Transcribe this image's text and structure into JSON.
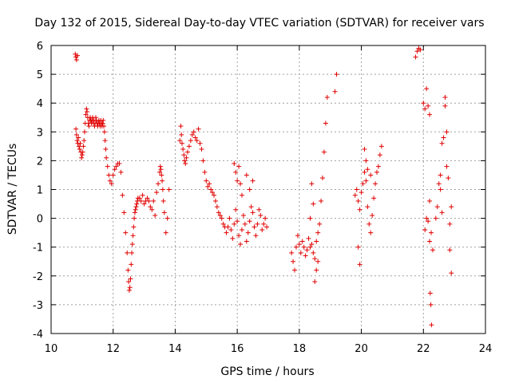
{
  "chart_data": {
    "type": "scatter",
    "title": "Day 132 of 2015, Sidereal Day-to-day VTEC variation (SDTVAR) for receiver vars",
    "xlabel": "GPS time / hours",
    "ylabel": "SDTVAR / TECUs",
    "xlim": [
      10,
      24
    ],
    "ylim": [
      -4,
      6
    ],
    "x_ticks": [
      "10",
      "12",
      "14",
      "16",
      "18",
      "20",
      "22",
      "24"
    ],
    "y_ticks": [
      "-4",
      "-3",
      "-2",
      "-1",
      "0",
      "1",
      "2",
      "3",
      "4",
      "5",
      "6"
    ],
    "grid": true,
    "marker": "+",
    "color": "#e00000",
    "series": [
      {
        "name": "SDTVAR",
        "x": [
          10.78,
          10.8,
          10.82,
          10.85,
          10.8,
          10.82,
          10.84,
          10.86,
          10.88,
          10.9,
          10.92,
          10.94,
          10.96,
          10.98,
          11.0,
          11.02,
          11.04,
          11.06,
          11.08,
          11.1,
          11.12,
          11.14,
          11.16,
          11.18,
          11.2,
          11.22,
          11.24,
          11.26,
          11.28,
          11.3,
          11.32,
          11.34,
          11.36,
          11.38,
          11.4,
          11.42,
          11.44,
          11.46,
          11.48,
          11.5,
          11.52,
          11.54,
          11.56,
          11.58,
          11.6,
          11.62,
          11.64,
          11.66,
          11.68,
          11.7,
          11.72,
          11.74,
          11.76,
          11.78,
          11.82,
          11.86,
          11.9,
          11.95,
          12.0,
          12.05,
          12.1,
          12.15,
          12.2,
          12.25,
          12.3,
          12.35,
          12.4,
          12.45,
          12.48,
          12.5,
          12.52,
          12.54,
          12.56,
          12.58,
          12.6,
          12.62,
          12.64,
          12.66,
          12.68,
          12.7,
          12.72,
          12.74,
          12.76,
          12.78,
          12.8,
          12.85,
          12.9,
          12.95,
          13.0,
          13.05,
          13.1,
          13.15,
          13.2,
          13.25,
          13.3,
          13.35,
          13.4,
          13.45,
          13.5,
          13.52,
          13.54,
          13.56,
          13.58,
          13.6,
          13.62,
          13.65,
          13.7,
          13.75,
          13.8,
          14.15,
          14.18,
          14.2,
          14.22,
          14.25,
          14.28,
          14.3,
          14.33,
          14.36,
          14.4,
          14.45,
          14.5,
          14.55,
          14.6,
          14.65,
          14.7,
          14.75,
          14.8,
          14.85,
          14.9,
          14.95,
          15.0,
          15.05,
          15.1,
          15.15,
          15.2,
          15.25,
          15.3,
          15.35,
          15.4,
          15.45,
          15.5,
          15.55,
          15.6,
          15.65,
          15.7,
          15.75,
          15.8,
          15.85,
          15.9,
          15.95,
          16.0,
          16.05,
          16.1,
          16.15,
          16.2,
          16.25,
          16.3,
          16.35,
          16.4,
          16.45,
          16.5,
          16.55,
          16.6,
          16.65,
          16.7,
          16.75,
          16.8,
          16.85,
          16.9,
          16.95,
          15.9,
          15.95,
          16.0,
          16.05,
          16.1,
          16.15,
          16.3,
          16.4,
          16.5,
          17.75,
          17.8,
          17.85,
          17.9,
          17.95,
          18.0,
          18.05,
          18.1,
          18.15,
          18.2,
          18.25,
          18.3,
          18.35,
          18.4,
          18.45,
          18.5,
          18.55,
          18.6,
          18.65,
          18.7,
          18.75,
          18.8,
          18.85,
          18.9,
          18.5,
          18.55,
          18.6,
          18.45,
          18.4,
          18.35,
          19.15,
          19.2,
          19.8,
          19.85,
          19.9,
          19.95,
          20.0,
          20.05,
          20.1,
          20.15,
          20.2,
          20.25,
          20.3,
          20.35,
          20.4,
          20.45,
          20.5,
          20.55,
          20.6,
          20.65,
          20.1,
          20.15,
          20.2,
          20.3,
          19.9,
          19.95,
          21.75,
          21.8,
          21.85,
          21.9,
          22.0,
          22.05,
          22.1,
          22.15,
          22.2,
          22.05,
          22.1,
          22.15,
          22.2,
          22.25,
          22.3,
          22.22,
          22.24,
          22.26,
          22.2,
          22.4,
          22.45,
          22.5,
          22.55,
          22.6,
          22.65,
          22.7,
          22.75,
          22.8,
          22.85,
          22.9,
          22.55,
          22.6,
          22.7,
          22.75,
          22.85,
          22.9
        ],
        "y": [
          5.7,
          5.6,
          5.5,
          5.65,
          3.1,
          2.9,
          2.7,
          2.6,
          2.8,
          2.5,
          2.4,
          2.6,
          2.3,
          2.1,
          2.2,
          2.3,
          2.5,
          2.7,
          3.0,
          3.3,
          3.6,
          3.8,
          3.7,
          3.5,
          3.3,
          3.2,
          3.4,
          3.5,
          3.4,
          3.3,
          3.4,
          3.5,
          3.3,
          3.4,
          3.2,
          3.3,
          3.5,
          3.4,
          3.3,
          3.2,
          3.3,
          3.4,
          3.3,
          3.2,
          3.4,
          3.3,
          3.2,
          3.3,
          3.4,
          3.2,
          3.0,
          2.7,
          2.4,
          2.1,
          1.8,
          1.5,
          1.3,
          1.2,
          1.5,
          1.7,
          1.8,
          1.9,
          1.9,
          1.6,
          0.8,
          0.2,
          -0.5,
          -1.2,
          -1.8,
          -2.2,
          -2.5,
          -2.4,
          -2.1,
          -1.6,
          -1.2,
          -0.9,
          -0.6,
          -0.3,
          0.0,
          0.2,
          0.3,
          0.4,
          0.5,
          0.6,
          0.7,
          0.7,
          0.6,
          0.8,
          0.5,
          0.6,
          0.7,
          0.6,
          0.4,
          0.3,
          0.6,
          0.1,
          0.9,
          1.2,
          1.6,
          1.8,
          1.7,
          1.5,
          1.3,
          1.0,
          0.6,
          0.2,
          -0.5,
          0.0,
          1.0,
          2.7,
          3.2,
          2.9,
          2.6,
          2.4,
          2.2,
          2.0,
          1.9,
          2.1,
          2.3,
          2.5,
          2.7,
          2.9,
          3.0,
          2.8,
          2.7,
          3.1,
          2.6,
          2.4,
          2.0,
          1.6,
          1.3,
          1.1,
          1.2,
          1.0,
          0.9,
          0.8,
          0.6,
          0.4,
          0.2,
          0.1,
          0.0,
          -0.2,
          -0.3,
          -0.5,
          -0.3,
          0.0,
          -0.4,
          -0.7,
          -0.2,
          0.3,
          -0.1,
          -0.6,
          -0.9,
          -0.4,
          0.1,
          -0.2,
          -0.8,
          -0.5,
          -0.1,
          0.4,
          0.2,
          -0.3,
          -0.6,
          -0.2,
          0.3,
          0.1,
          -0.4,
          -0.2,
          0.0,
          -0.3,
          1.9,
          1.6,
          1.3,
          1.8,
          1.2,
          0.8,
          1.5,
          1.0,
          1.3,
          -1.2,
          -1.5,
          -1.8,
          -1.0,
          -0.6,
          -0.9,
          -1.2,
          -0.8,
          -1.0,
          -1.3,
          -1.1,
          -0.7,
          -1.0,
          -0.9,
          -1.2,
          -1.4,
          -0.8,
          -0.5,
          -0.2,
          0.6,
          1.4,
          2.3,
          3.3,
          4.2,
          -2.2,
          -1.8,
          -1.5,
          0.5,
          1.2,
          0.0,
          4.4,
          5.0,
          0.8,
          1.0,
          0.6,
          0.3,
          0.9,
          1.2,
          1.6,
          1.3,
          0.4,
          -0.2,
          -0.5,
          0.1,
          0.7,
          1.2,
          1.6,
          1.8,
          2.2,
          2.5,
          2.4,
          2.0,
          1.7,
          1.5,
          -1.0,
          -1.6,
          5.6,
          5.8,
          5.9,
          5.85,
          4.0,
          3.8,
          4.5,
          3.9,
          3.6,
          -0.4,
          0.0,
          -0.1,
          0.6,
          -0.5,
          -1.1,
          -2.6,
          -3.0,
          -3.7,
          -0.8,
          0.0,
          0.4,
          1.2,
          1.5,
          2.6,
          2.8,
          4.2,
          3.0,
          1.4,
          -0.2,
          -1.9,
          1.0,
          0.2,
          3.9,
          1.8,
          -1.1,
          0.4
        ]
      }
    ]
  }
}
